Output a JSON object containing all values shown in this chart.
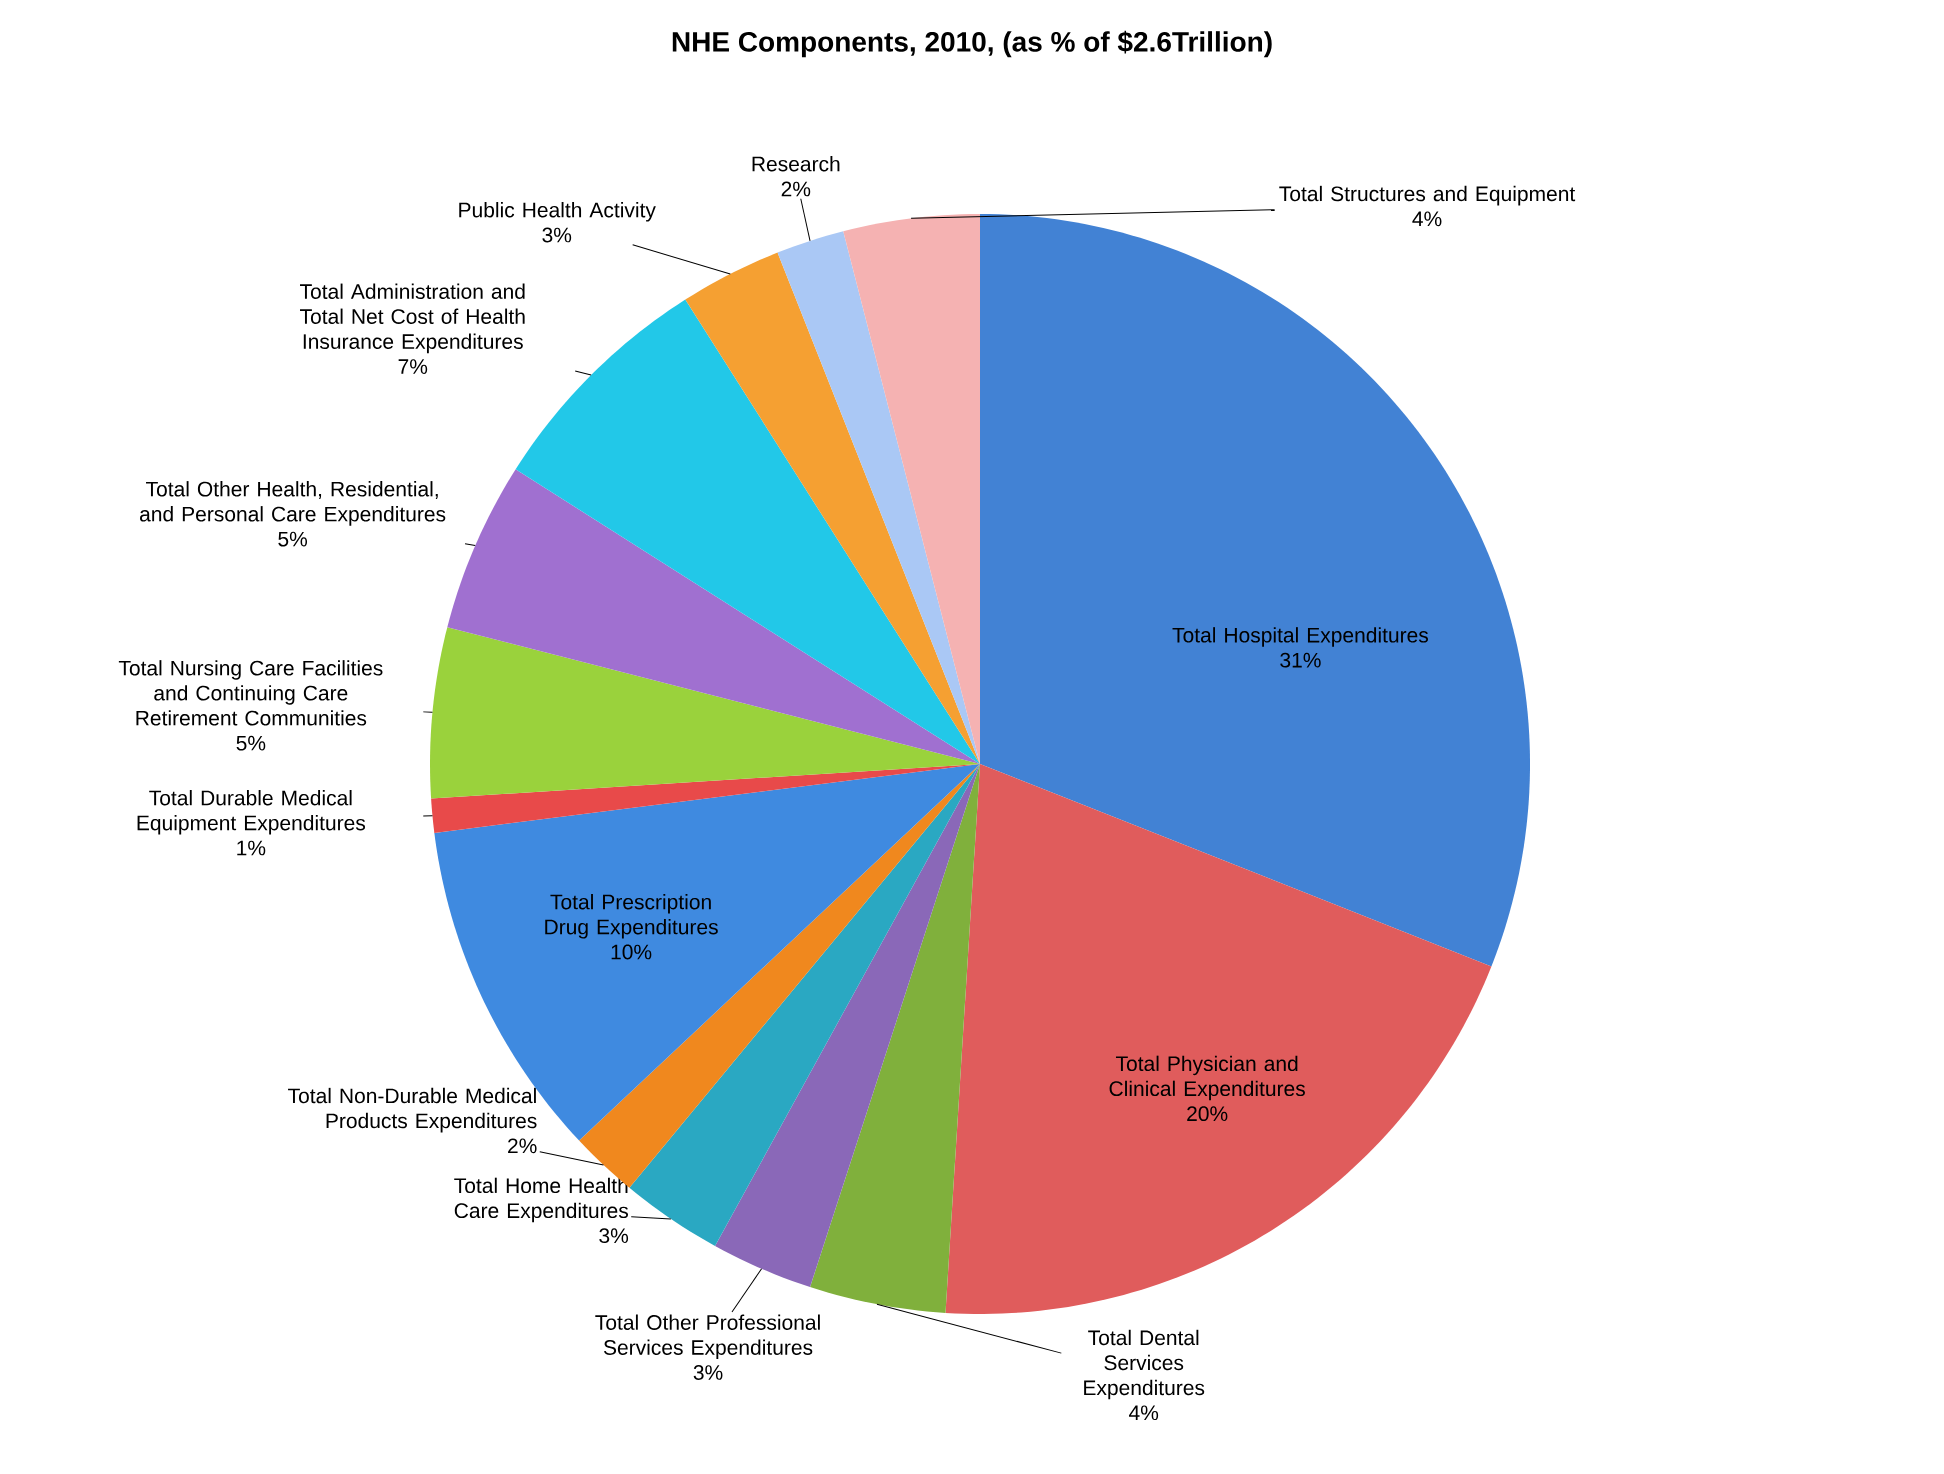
{
  "chart_data": {
    "type": "pie",
    "title": "NHE Components, 2010, (as % of $2.6Trillion)",
    "categories": [
      "Total Hospital Expenditures",
      "Total Physician and Clinical Expenditures",
      "Total Dental Services Expenditures",
      "Total Other Professional Services Expenditures",
      "Total Home Health Care Expenditures",
      "Total Non-Durable Medical Products Expenditures",
      "Total Prescription Drug Expenditures",
      "Total Durable Medical Equipment Expenditures",
      "Total Nursing Care Facilities and Continuing Care Retirement Communities",
      "Total Other Health, Residential, and Personal Care Expenditures",
      "Total Administration and Total Net Cost of Health Insurance Expenditures",
      "Public Health Activity",
      "Research",
      "Total Structures and Equipment"
    ],
    "values": [
      31,
      20,
      4,
      3,
      3,
      2,
      10,
      1,
      5,
      5,
      7,
      3,
      2,
      4
    ],
    "value_labels": [
      "31%",
      "20%",
      "4%",
      "3%",
      "3%",
      "2%",
      "10%",
      "1%",
      "5%",
      "5%",
      "7%",
      "3%",
      "2%",
      "4%"
    ],
    "colors": [
      "#4282d4",
      "#e05c5c",
      "#80b03c",
      "#8a68b8",
      "#2aa8c2",
      "#f0881e",
      "#3f8ae0",
      "#e84a4a",
      "#9ad23c",
      "#a070d0",
      "#22c8e8",
      "#f5a032",
      "#aac8f5",
      "#f5b2b2"
    ]
  }
}
